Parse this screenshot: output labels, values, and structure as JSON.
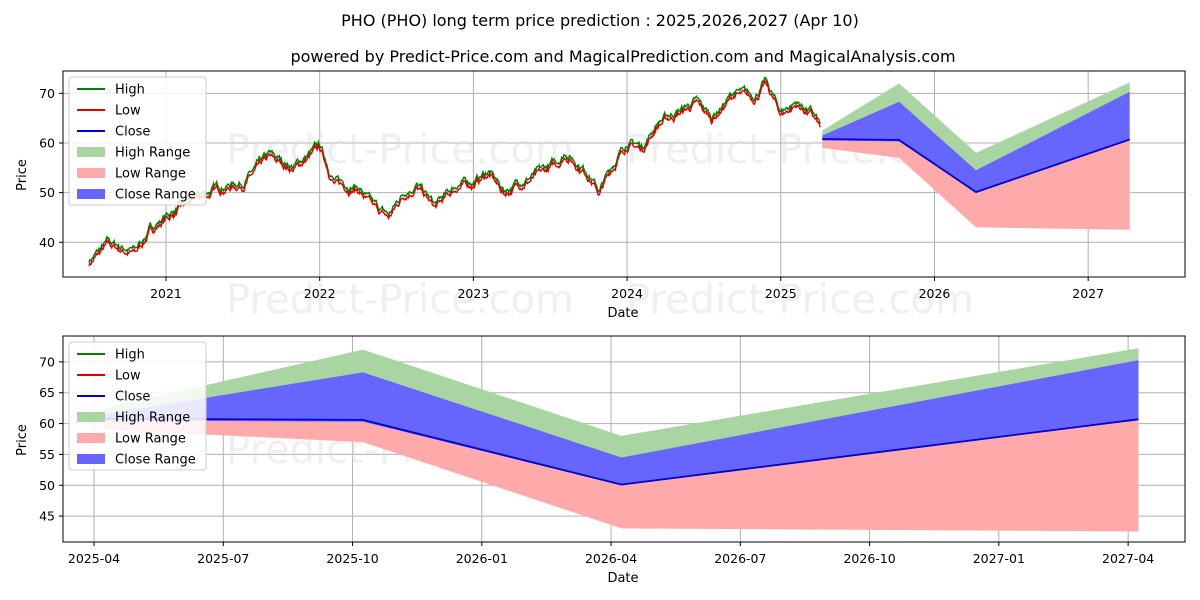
{
  "title": "PHO (PHO) long term price prediction : 2025,2026,2027 (Apr 10)",
  "subtitle": "powered by Predict-Price.com and MagicalPrediction.com and MagicalAnalysis.com",
  "watermark": "Predict-Price.com",
  "colors": {
    "high": "#008000",
    "low": "#e00000",
    "close": "#0000cc",
    "high_range": "#a8d5a2",
    "low_range": "#ffaaaa",
    "close_range": "#6666ff",
    "grid": "#b0b0b0"
  },
  "legend": {
    "high": "High",
    "low": "Low",
    "close": "Close",
    "high_range": "High Range",
    "low_range": "Low Range",
    "close_range": "Close Range"
  },
  "chart_data": [
    {
      "type": "line",
      "title": "long term history and prediction",
      "xlabel": "Date",
      "ylabel": "Price",
      "xlim": [
        2020.33,
        2027.63
      ],
      "ylim": [
        33,
        74.5
      ],
      "xticks": [
        2021,
        2022,
        2023,
        2024,
        2025,
        2026,
        2027
      ],
      "xtick_labels": [
        "2021",
        "2022",
        "2023",
        "2024",
        "2025",
        "2026",
        "2027"
      ],
      "yticks": [
        40,
        50,
        60,
        70
      ],
      "ytick_labels": [
        "40",
        "50",
        "60",
        "70"
      ],
      "grid": true,
      "legend_position": "upper-left",
      "history_anchors": {
        "x": [
          2020.5,
          2020.62,
          2020.8,
          2020.9,
          2021.0,
          2021.15,
          2021.35,
          2021.5,
          2021.67,
          2021.83,
          2022.0,
          2022.1,
          2022.25,
          2022.35,
          2022.45,
          2022.55,
          2022.63,
          2022.75,
          2022.82,
          2022.9,
          2023.0,
          2023.1,
          2023.2,
          2023.3,
          2023.45,
          2023.55,
          2023.6,
          2023.75,
          2023.82,
          2023.9,
          2024.0,
          2024.1,
          2024.2,
          2024.32,
          2024.45,
          2024.55,
          2024.7,
          2024.82,
          2024.9,
          2025.0,
          2025.1,
          2025.2,
          2025.26
        ],
        "y": [
          36,
          39.5,
          38,
          42.5,
          45,
          48,
          51,
          52,
          57,
          55,
          59,
          52,
          51,
          47,
          45,
          50,
          51.5,
          47,
          49,
          51.5,
          52,
          54,
          50,
          52,
          54,
          56,
          58,
          54,
          50,
          55,
          60,
          59,
          64,
          66,
          68,
          65,
          70,
          69,
          72,
          66,
          68,
          66,
          63
        ]
      },
      "prediction": {
        "x": [
          2025.27,
          2025.77,
          2026.27,
          2027.27
        ],
        "high_range_upper": [
          62.5,
          72.0,
          58.0,
          72.2
        ],
        "high_range_lower": [
          60.5,
          68.0,
          54.0,
          70.2
        ],
        "close_range_upper": [
          61.5,
          68.3,
          54.5,
          70.3
        ],
        "close_range_lower": [
          60.5,
          60.3,
          50.0,
          60.7
        ],
        "low_range_upper": [
          61.0,
          60.5,
          50.2,
          60.8
        ],
        "low_range_lower": [
          59.0,
          57.0,
          43.0,
          42.5
        ],
        "close": [
          60.8,
          60.6,
          50.1,
          60.7
        ]
      }
    },
    {
      "type": "line",
      "title": "prediction detail",
      "xlabel": "Date",
      "ylabel": "Price",
      "xlim": [
        2025.19,
        2027.36
      ],
      "ylim": [
        40.8,
        74.2
      ],
      "xticks": [
        2025.25,
        2025.5,
        2025.75,
        2026.0,
        2026.25,
        2026.5,
        2026.75,
        2027.0,
        2027.25
      ],
      "xtick_labels": [
        "2025-04",
        "2025-07",
        "2025-10",
        "2026-01",
        "2026-04",
        "2026-07",
        "2026-10",
        "2027-01",
        "2027-04"
      ],
      "yticks": [
        45,
        50,
        55,
        60,
        65,
        70
      ],
      "ytick_labels": [
        "45",
        "50",
        "55",
        "60",
        "65",
        "70"
      ],
      "grid": true,
      "legend_position": "upper-left",
      "prediction": {
        "x": [
          2025.27,
          2025.77,
          2026.27,
          2027.27
        ],
        "high_range_upper": [
          62.5,
          72.0,
          58.0,
          72.2
        ],
        "high_range_lower": [
          60.5,
          68.0,
          54.0,
          70.2
        ],
        "close_range_upper": [
          61.5,
          68.3,
          54.5,
          70.3
        ],
        "close_range_lower": [
          60.5,
          60.3,
          50.0,
          60.7
        ],
        "low_range_upper": [
          61.0,
          60.5,
          50.2,
          60.8
        ],
        "low_range_lower": [
          59.0,
          57.0,
          43.0,
          42.5
        ],
        "close": [
          60.8,
          60.6,
          50.1,
          60.7
        ]
      }
    }
  ]
}
